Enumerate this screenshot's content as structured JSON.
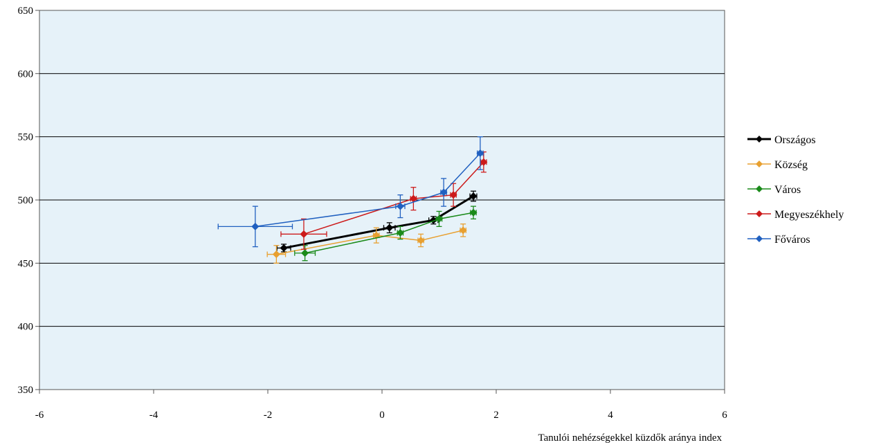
{
  "chart_data": {
    "type": "scatter",
    "title": "",
    "xlabel": "Tanulói nehézségekkel küzdők aránya index",
    "ylabel": "",
    "xlim": [
      -6,
      6
    ],
    "ylim": [
      350,
      650
    ],
    "x_ticks": [
      -6,
      -4,
      -2,
      0,
      2,
      4,
      6
    ],
    "y_ticks": [
      350,
      400,
      450,
      500,
      550,
      600,
      650
    ],
    "grid": "horizontal",
    "legend_position": "right",
    "plot_background": "#e6f2f9",
    "series": [
      {
        "name": "Országos",
        "color": "#000000",
        "line_width": 3,
        "points": [
          {
            "x": -1.72,
            "y": 462,
            "xerr": 0.12,
            "yerr": 3
          },
          {
            "x": 0.13,
            "y": 478,
            "xerr": 0.1,
            "yerr": 4
          },
          {
            "x": 0.9,
            "y": 484,
            "xerr": 0.08,
            "yerr": 3
          },
          {
            "x": 1.6,
            "y": 503,
            "xerr": 0.06,
            "yerr": 4
          }
        ]
      },
      {
        "name": "Község",
        "color": "#e8a030",
        "line_width": 1.5,
        "points": [
          {
            "x": -1.85,
            "y": 457,
            "xerr": 0.16,
            "yerr": 7
          },
          {
            "x": -0.1,
            "y": 472,
            "xerr": 0.05,
            "yerr": 6
          },
          {
            "x": 0.68,
            "y": 468,
            "xerr": 0.05,
            "yerr": 5
          },
          {
            "x": 1.42,
            "y": 476,
            "xerr": 0.05,
            "yerr": 5
          }
        ]
      },
      {
        "name": "Város",
        "color": "#1a8a1a",
        "line_width": 1.5,
        "points": [
          {
            "x": -1.35,
            "y": 458,
            "xerr": 0.18,
            "yerr": 6
          },
          {
            "x": 0.32,
            "y": 474,
            "xerr": 0.05,
            "yerr": 5
          },
          {
            "x": 1.0,
            "y": 485,
            "xerr": 0.05,
            "yerr": 6
          },
          {
            "x": 1.6,
            "y": 490,
            "xerr": 0.05,
            "yerr": 5
          }
        ]
      },
      {
        "name": "Megyeszékhely",
        "color": "#cc1a1a",
        "line_width": 1.5,
        "points": [
          {
            "x": -1.37,
            "y": 473,
            "xerr": 0.4,
            "yerr": 12
          },
          {
            "x": 0.55,
            "y": 501,
            "xerr": 0.05,
            "yerr": 9
          },
          {
            "x": 1.25,
            "y": 504,
            "xerr": 0.05,
            "yerr": 9
          },
          {
            "x": 1.78,
            "y": 530,
            "xerr": 0.05,
            "yerr": 8
          }
        ]
      },
      {
        "name": "Főváros",
        "color": "#2060c0",
        "line_width": 1.5,
        "points": [
          {
            "x": -2.22,
            "y": 479,
            "xerr": 0.65,
            "yerr": 16
          },
          {
            "x": 0.32,
            "y": 495,
            "xerr": 0.08,
            "yerr": 9
          },
          {
            "x": 1.08,
            "y": 506,
            "xerr": 0.05,
            "yerr": 11
          },
          {
            "x": 1.72,
            "y": 537,
            "xerr": 0.05,
            "yerr": 13
          }
        ]
      }
    ]
  }
}
